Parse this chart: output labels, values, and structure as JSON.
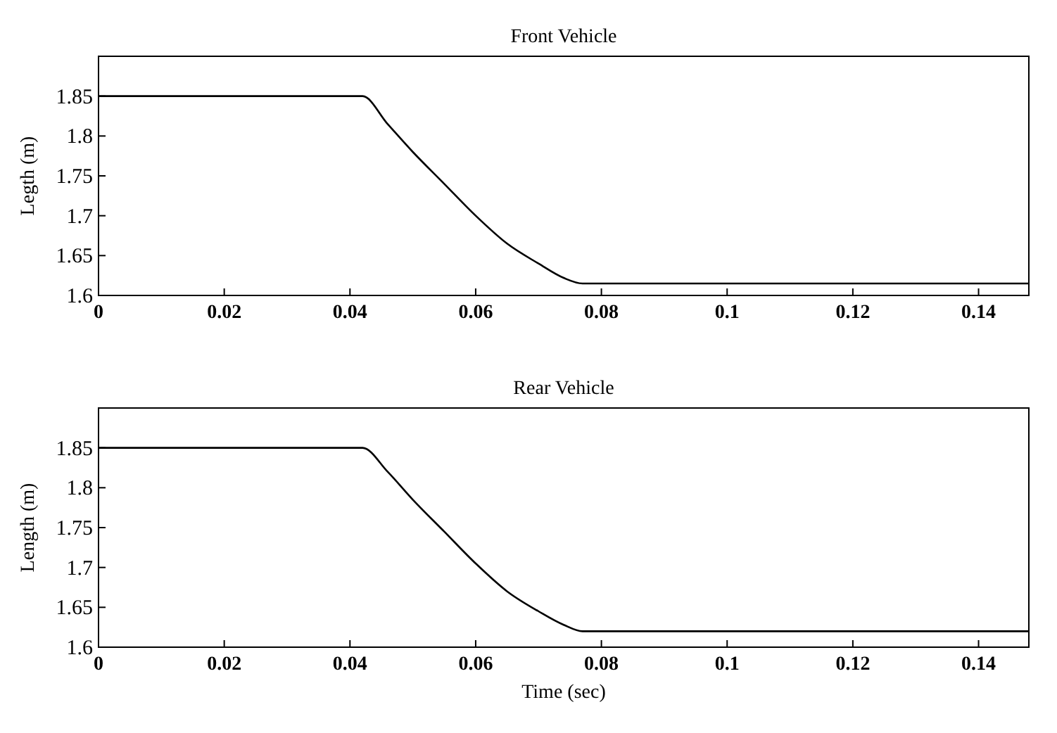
{
  "chart_data": [
    {
      "type": "line",
      "title": "Front Vehicle",
      "ylabel": "Legth (m)",
      "x": [
        0,
        0.042,
        0.046,
        0.05,
        0.055,
        0.06,
        0.065,
        0.07,
        0.074,
        0.077,
        0.148
      ],
      "series": [
        {
          "color": "#000000",
          "values": [
            1.85,
            1.85,
            1.815,
            1.78,
            1.74,
            1.7,
            1.665,
            1.64,
            1.622,
            1.615,
            1.615
          ]
        }
      ],
      "xlim": [
        0,
        0.148
      ],
      "ylim": [
        1.6,
        1.9
      ],
      "xticks": [
        0,
        0.02,
        0.04,
        0.06,
        0.08,
        0.1,
        0.12,
        0.14
      ],
      "yticks": [
        1.6,
        1.65,
        1.7,
        1.75,
        1.8,
        1.85
      ],
      "grid": false
    },
    {
      "type": "line",
      "title": "Rear Vehicle",
      "xlabel": "Time (sec)",
      "ylabel": "Length (m)",
      "x": [
        0,
        0.042,
        0.046,
        0.05,
        0.055,
        0.06,
        0.065,
        0.07,
        0.074,
        0.077,
        0.148
      ],
      "series": [
        {
          "color": "#000000",
          "values": [
            1.85,
            1.85,
            1.82,
            1.785,
            1.745,
            1.705,
            1.67,
            1.645,
            1.628,
            1.62,
            1.62
          ]
        }
      ],
      "xlim": [
        0,
        0.148
      ],
      "ylim": [
        1.6,
        1.9
      ],
      "xticks": [
        0,
        0.02,
        0.04,
        0.06,
        0.08,
        0.1,
        0.12,
        0.14
      ],
      "yticks": [
        1.6,
        1.65,
        1.7,
        1.75,
        1.8,
        1.85
      ],
      "grid": false
    }
  ]
}
